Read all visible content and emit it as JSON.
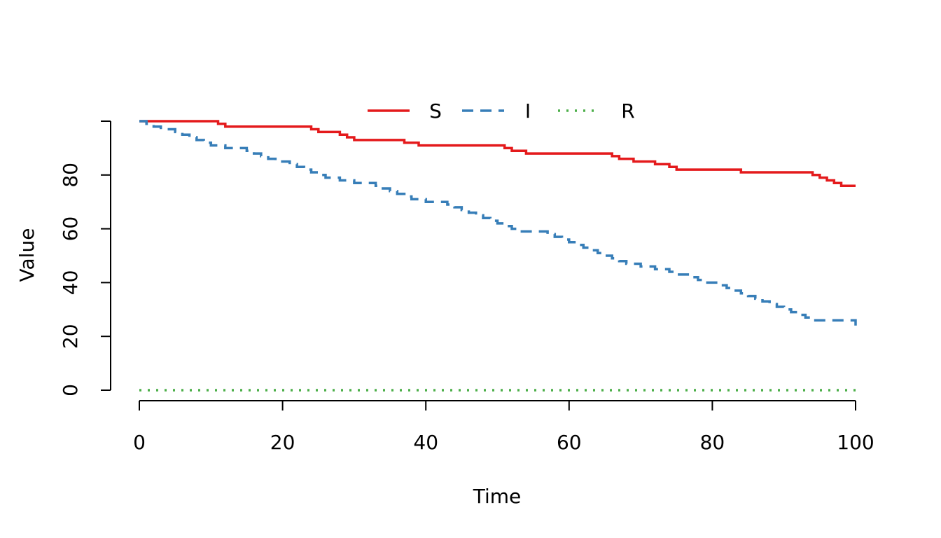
{
  "chart_data": {
    "type": "line",
    "title": "",
    "xlabel": "Time",
    "ylabel": "Value",
    "xlim": [
      0,
      100
    ],
    "ylim": [
      0,
      100
    ],
    "xticks": [
      0,
      20,
      40,
      60,
      80,
      100
    ],
    "yticks": [
      0,
      20,
      40,
      60,
      80
    ],
    "grid": false,
    "legend": "top-center",
    "step": true,
    "series": [
      {
        "name": "S",
        "color": "#E41A1C",
        "style": "solid",
        "points": [
          [
            0,
            100
          ],
          [
            11,
            99
          ],
          [
            12,
            98
          ],
          [
            24,
            97
          ],
          [
            25,
            96
          ],
          [
            28,
            95
          ],
          [
            29,
            94
          ],
          [
            30,
            93
          ],
          [
            37,
            92
          ],
          [
            39,
            91
          ],
          [
            51,
            90
          ],
          [
            52,
            89
          ],
          [
            54,
            88
          ],
          [
            66,
            87
          ],
          [
            67,
            86
          ],
          [
            69,
            85
          ],
          [
            72,
            84
          ],
          [
            74,
            83
          ],
          [
            75,
            82
          ],
          [
            84,
            81
          ],
          [
            94,
            80
          ],
          [
            95,
            79
          ],
          [
            96,
            78
          ],
          [
            97,
            77
          ],
          [
            98,
            76
          ],
          [
            100,
            76
          ]
        ]
      },
      {
        "name": "I",
        "color": "#377EB8",
        "style": "dashed",
        "points": [
          [
            0,
            100
          ],
          [
            1,
            99
          ],
          [
            2,
            98
          ],
          [
            3,
            97
          ],
          [
            5,
            96
          ],
          [
            6,
            95
          ],
          [
            7,
            94
          ],
          [
            8,
            93
          ],
          [
            9,
            92
          ],
          [
            10,
            91
          ],
          [
            12,
            90
          ],
          [
            15,
            89
          ],
          [
            16,
            88
          ],
          [
            17,
            87
          ],
          [
            18,
            86
          ],
          [
            19,
            85
          ],
          [
            21,
            84
          ],
          [
            22,
            83
          ],
          [
            23,
            82
          ],
          [
            24,
            81
          ],
          [
            25,
            80
          ],
          [
            26,
            79
          ],
          [
            28,
            78
          ],
          [
            30,
            77
          ],
          [
            33,
            76
          ],
          [
            34,
            75
          ],
          [
            35,
            74
          ],
          [
            36,
            73
          ],
          [
            37,
            72
          ],
          [
            38,
            71
          ],
          [
            40,
            70
          ],
          [
            43,
            69
          ],
          [
            44,
            68
          ],
          [
            45,
            67
          ],
          [
            46,
            66
          ],
          [
            47,
            65
          ],
          [
            48,
            64
          ],
          [
            49,
            63
          ],
          [
            50,
            62
          ],
          [
            51,
            61
          ],
          [
            52,
            60
          ],
          [
            53,
            59
          ],
          [
            57,
            58
          ],
          [
            58,
            57
          ],
          [
            59,
            56
          ],
          [
            60,
            55
          ],
          [
            61,
            54
          ],
          [
            62,
            53
          ],
          [
            63,
            52
          ],
          [
            64,
            51
          ],
          [
            65,
            50
          ],
          [
            66,
            49
          ],
          [
            67,
            48
          ],
          [
            68,
            47
          ],
          [
            70,
            46
          ],
          [
            72,
            45
          ],
          [
            74,
            44
          ],
          [
            75,
            43
          ],
          [
            77,
            42
          ],
          [
            78,
            41
          ],
          [
            79,
            40
          ],
          [
            81,
            39
          ],
          [
            82,
            38
          ],
          [
            83,
            37
          ],
          [
            84,
            36
          ],
          [
            85,
            35
          ],
          [
            86,
            34
          ],
          [
            87,
            33
          ],
          [
            88,
            32
          ],
          [
            89,
            31
          ],
          [
            90,
            30
          ],
          [
            91,
            29
          ],
          [
            92,
            28
          ],
          [
            93,
            27
          ],
          [
            94,
            26
          ],
          [
            99.5,
            26
          ],
          [
            100,
            24
          ]
        ]
      },
      {
        "name": "R",
        "color": "#4DAF4A",
        "style": "dotted",
        "points": [
          [
            0,
            0
          ],
          [
            100,
            0
          ]
        ]
      }
    ]
  }
}
